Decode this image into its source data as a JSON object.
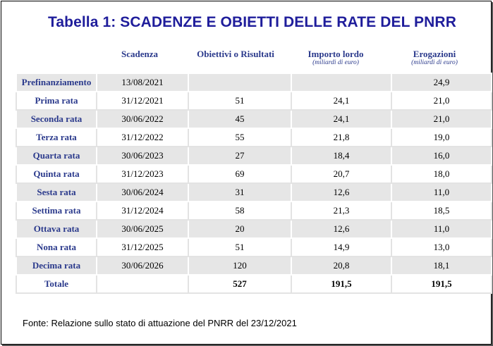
{
  "title": "Tabella 1:  SCADENZE E OBIETTI DELLE RATE DEL PNRR",
  "headers": {
    "scadenza": "Scadenza",
    "obiettivi": "Obiettivi o Risultati",
    "importo": "Importo lordo",
    "importo_unit": "(miliardi di euro)",
    "erogazioni": "Erogazioni",
    "erogazioni_unit": "(miliardi di euro)"
  },
  "rows": [
    {
      "label": "Prefinanziamento",
      "scadenza": "13/08/2021",
      "obiettivi": "",
      "importo": "",
      "erogazioni": "24,9"
    },
    {
      "label": "Prima rata",
      "scadenza": "31/12/2021",
      "obiettivi": "51",
      "importo": "24,1",
      "erogazioni": "21,0"
    },
    {
      "label": "Seconda rata",
      "scadenza": "30/06/2022",
      "obiettivi": "45",
      "importo": "24,1",
      "erogazioni": "21,0"
    },
    {
      "label": "Terza rata",
      "scadenza": "31/12/2022",
      "obiettivi": "55",
      "importo": "21,8",
      "erogazioni": "19,0"
    },
    {
      "label": "Quarta rata",
      "scadenza": "30/06/2023",
      "obiettivi": "27",
      "importo": "18,4",
      "erogazioni": "16,0"
    },
    {
      "label": "Quinta rata",
      "scadenza": "31/12/2023",
      "obiettivi": "69",
      "importo": "20,7",
      "erogazioni": "18,0"
    },
    {
      "label": "Sesta rata",
      "scadenza": "30/06/2024",
      "obiettivi": "31",
      "importo": "12,6",
      "erogazioni": "11,0"
    },
    {
      "label": "Settima rata",
      "scadenza": "31/12/2024",
      "obiettivi": "58",
      "importo": "21,3",
      "erogazioni": "18,5"
    },
    {
      "label": "Ottava rata",
      "scadenza": "30/06/2025",
      "obiettivi": "20",
      "importo": "12,6",
      "erogazioni": "11,0"
    },
    {
      "label": "Nona rata",
      "scadenza": "31/12/2025",
      "obiettivi": "51",
      "importo": "14,9",
      "erogazioni": "13,0"
    },
    {
      "label": "Decima rata",
      "scadenza": "30/06/2026",
      "obiettivi": "120",
      "importo": "20,8",
      "erogazioni": "18,1"
    },
    {
      "label": "Totale",
      "scadenza": "",
      "obiettivi": "527",
      "importo": "191,5",
      "erogazioni": "191,5"
    }
  ],
  "source": "Fonte: Relazione sullo stato di attuazione del PNRR del 23/12/2021"
}
